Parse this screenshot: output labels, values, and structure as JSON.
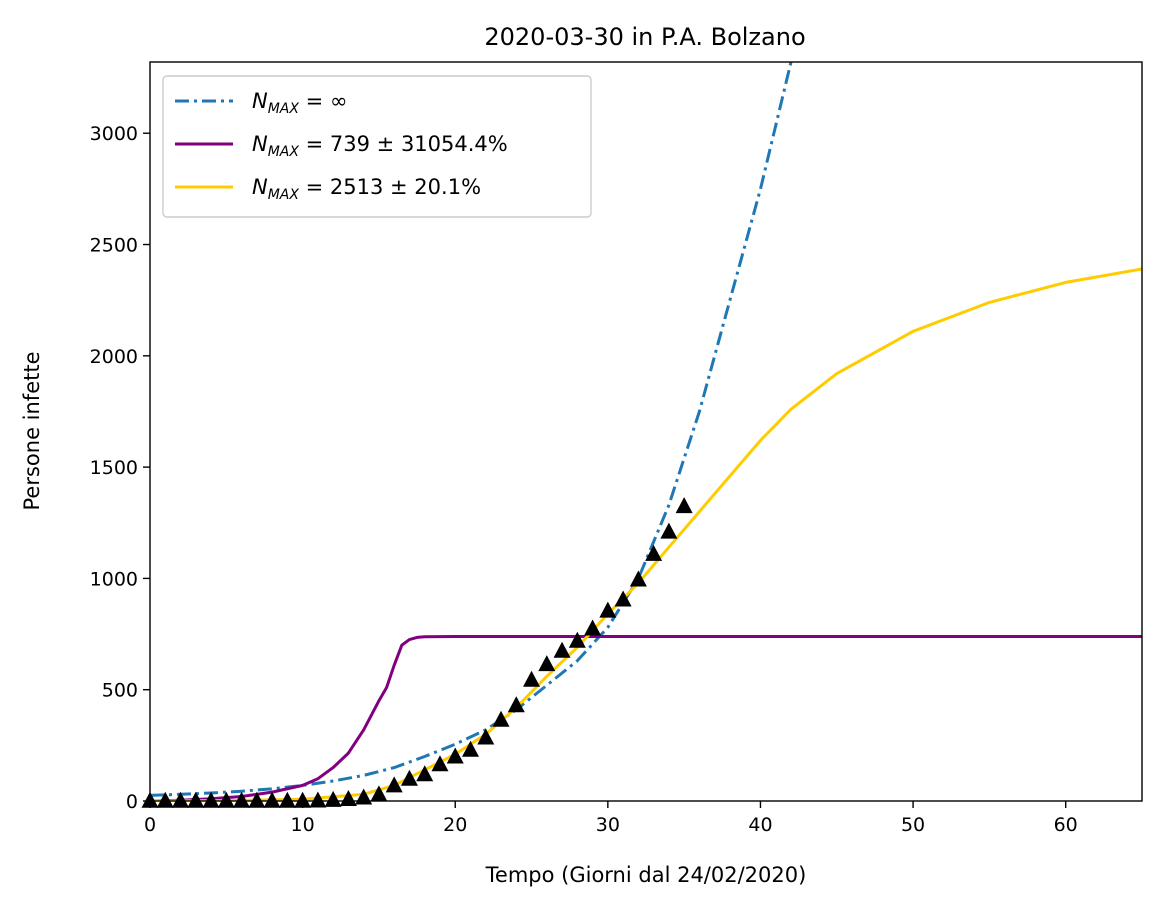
{
  "chart_data": {
    "type": "line",
    "title": "2020-03-30 in P.A. Bolzano",
    "xlabel": "Tempo (Giorni dal 24/02/2020)",
    "ylabel": "Persone infette",
    "xlim": [
      0,
      65
    ],
    "ylim": [
      0,
      3320
    ],
    "xticks": [
      0,
      10,
      20,
      30,
      40,
      50,
      60
    ],
    "yticks": [
      0,
      500,
      1000,
      1500,
      2000,
      2500,
      3000
    ],
    "grid": false,
    "legend_position": "upper-left",
    "series": [
      {
        "name": "N_MAX = ∞",
        "legend": {
          "var": "N",
          "sub": "MAX",
          "rest": " = ∞"
        },
        "style": "dashdot",
        "color": "#1f77b4",
        "x": [
          0,
          2,
          4,
          6,
          8,
          10,
          12,
          14,
          16,
          18,
          20,
          22,
          24,
          26,
          28,
          30,
          32,
          34,
          36,
          38,
          40,
          42
        ],
        "y": [
          25,
          30,
          36,
          44,
          55,
          70,
          90,
          115,
          150,
          200,
          255,
          320,
          410,
          520,
          630,
          780,
          1000,
          1330,
          1750,
          2250,
          2750,
          3320
        ]
      },
      {
        "name": "N_MAX = 739 ± 31054.4%",
        "legend": {
          "var": "N",
          "sub": "MAX",
          "rest": " = 739 ± 31054.4%"
        },
        "style": "solid",
        "color": "#800080",
        "x": [
          0,
          2,
          4,
          6,
          8,
          10,
          11,
          12,
          13,
          14,
          15,
          15.5,
          16,
          16.5,
          17,
          17.5,
          18,
          20,
          30,
          40,
          50,
          60,
          65
        ],
        "y": [
          0,
          3,
          10,
          20,
          40,
          70,
          100,
          150,
          215,
          320,
          450,
          510,
          610,
          700,
          725,
          735,
          738,
          739,
          739,
          739,
          739,
          739,
          739
        ]
      },
      {
        "name": "N_MAX = 2513 ± 20.1%",
        "legend": {
          "var": "N",
          "sub": "MAX",
          "rest": " = 2513 ± 20.1%"
        },
        "style": "solid",
        "color": "#ffcc00",
        "x": [
          0,
          5,
          10,
          14,
          16,
          18,
          20,
          22,
          24,
          26,
          28,
          30,
          32,
          34,
          36,
          38,
          40,
          42,
          45,
          50,
          55,
          60,
          65
        ],
        "y": [
          0,
          2,
          8,
          30,
          70,
          140,
          210,
          300,
          420,
          560,
          690,
          840,
          980,
          1140,
          1300,
          1460,
          1620,
          1760,
          1920,
          2110,
          2240,
          2330,
          2390
        ]
      },
      {
        "name": "data",
        "style": "markers",
        "marker": "triangle",
        "color": "#000000",
        "x": [
          0,
          1,
          2,
          3,
          4,
          5,
          6,
          7,
          8,
          9,
          10,
          11,
          12,
          13,
          14,
          15,
          16,
          17,
          18,
          19,
          20,
          21,
          22,
          23,
          24,
          25,
          26,
          27,
          28,
          29,
          30,
          31,
          32,
          33,
          34,
          35
        ],
        "y": [
          1,
          1,
          1,
          1,
          1,
          1,
          1,
          1,
          1,
          1,
          1,
          2,
          5,
          9,
          16,
          30,
          70,
          100,
          120,
          165,
          200,
          230,
          285,
          365,
          430,
          545,
          615,
          675,
          720,
          775,
          855,
          905,
          995,
          1110,
          1210,
          1325
        ]
      }
    ]
  }
}
